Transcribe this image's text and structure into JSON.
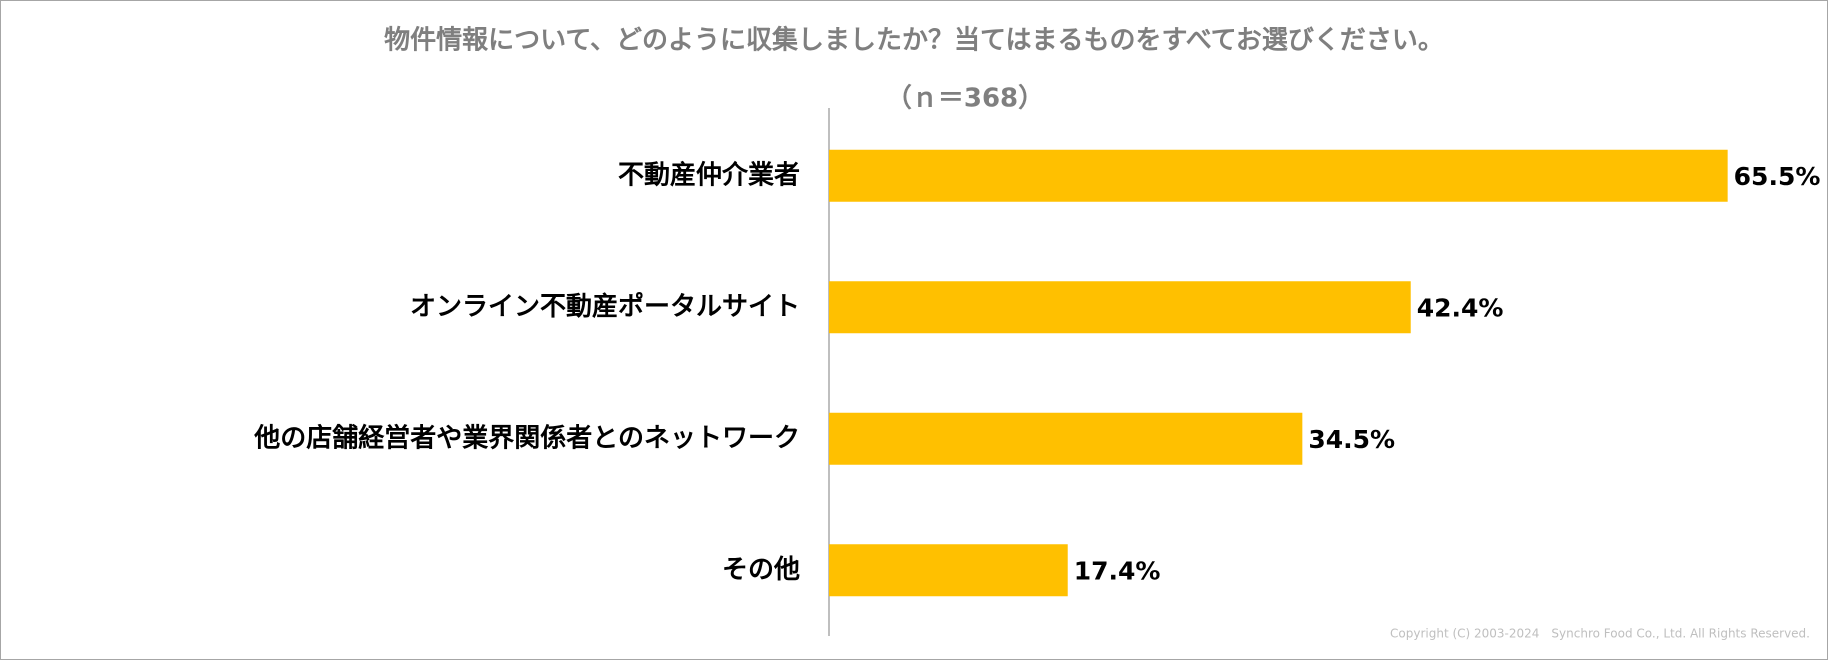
{
  "chart_data": {
    "type": "bar",
    "orientation": "horizontal",
    "title": "物件情報について、どのように収集しましたか？当てはまるものをすべてお選びください。",
    "subtitle": "（ｎ＝368）",
    "categories": [
      "不動産仲介業者",
      "オンライン不動産ポータルサイト",
      "他の店舗経営者や業界関係者とのネットワーク",
      "その他"
    ],
    "values": [
      65.5,
      42.4,
      34.5,
      17.4
    ],
    "value_labels": [
      "65.5%",
      "42.4%",
      "34.5%",
      "17.4%"
    ],
    "color": "#ffc000",
    "copyright": "Copyright (C) 2003-2024　Synchro Food Co., Ltd. All Rights Reserved."
  }
}
